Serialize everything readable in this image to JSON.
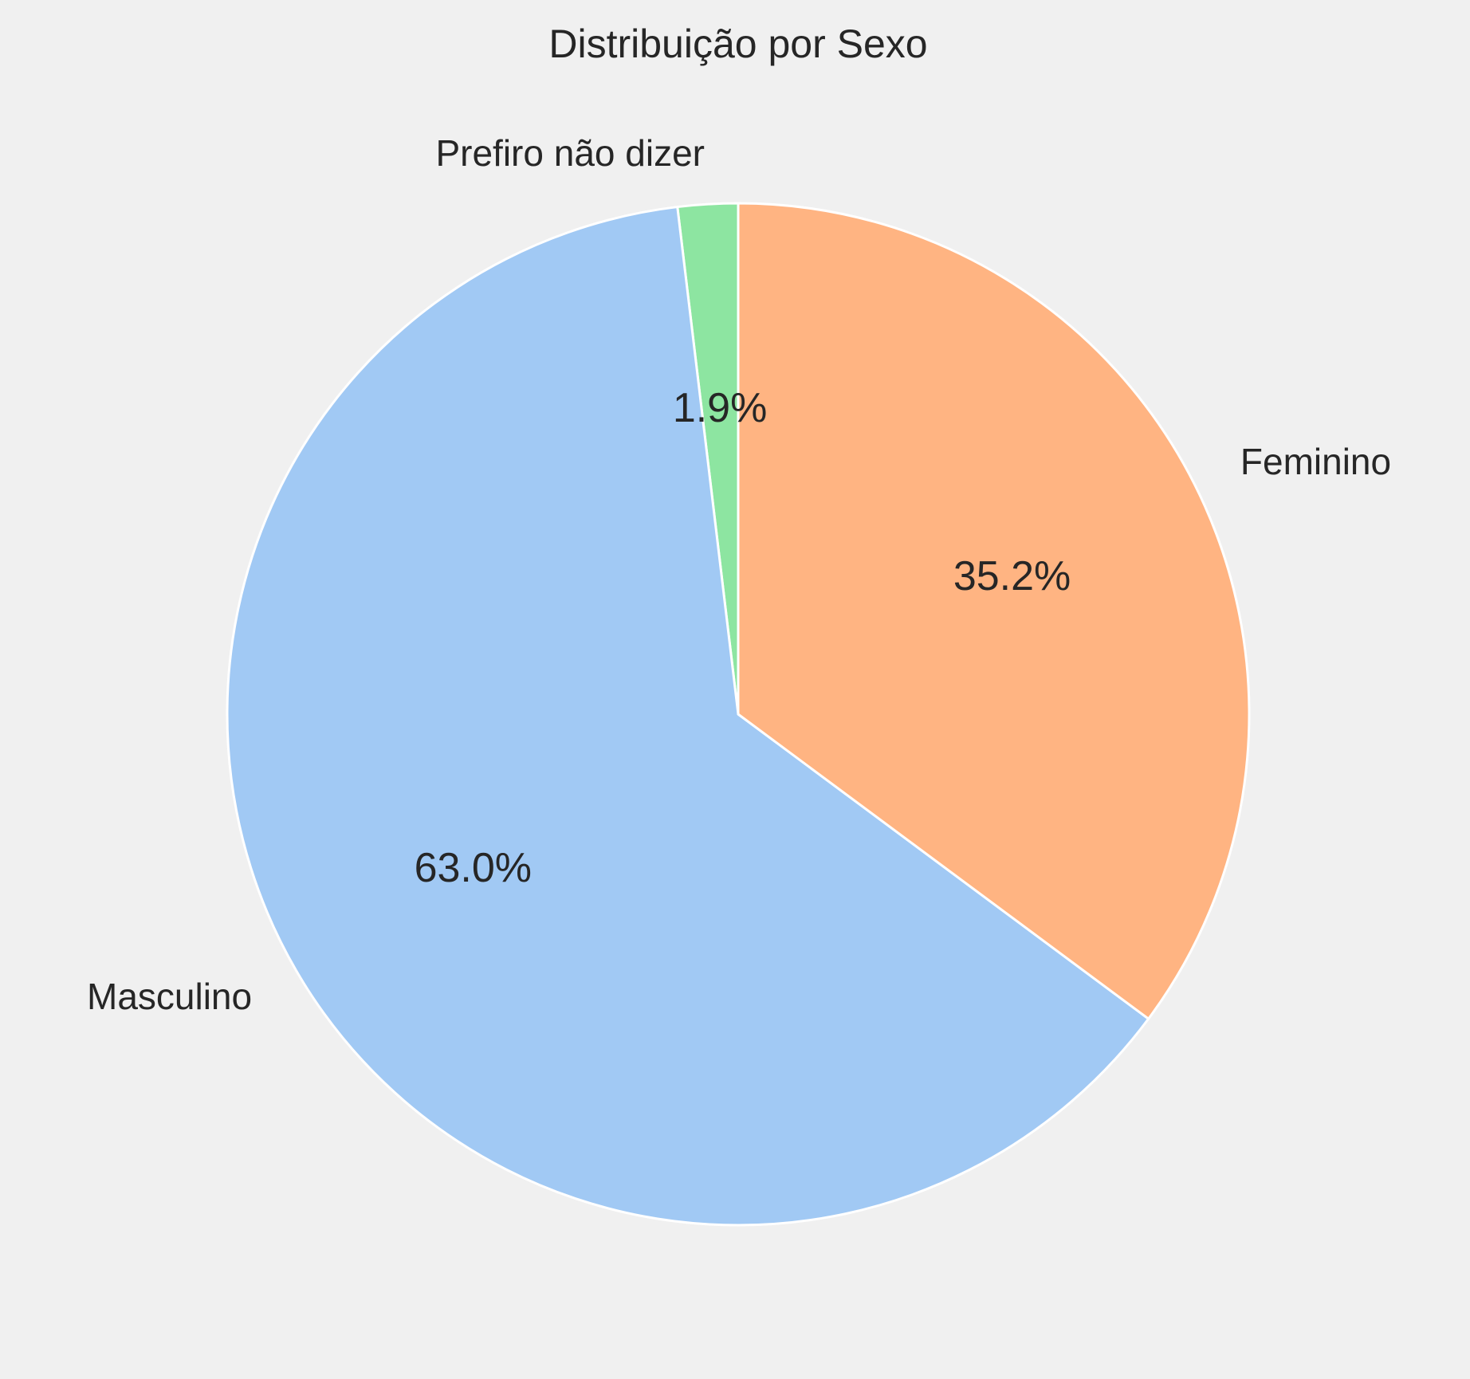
{
  "chart_data": {
    "type": "pie",
    "title": "Distribuição por Sexo",
    "direction": "counterclockwise",
    "start": "top",
    "slices": [
      {
        "label": "Prefiro não dizer",
        "value": 1.9,
        "pct_label": "1.9%",
        "color": "#8de5a1"
      },
      {
        "label": "Masculino",
        "value": 63.0,
        "pct_label": "63.0%",
        "color": "#a1c9f4"
      },
      {
        "label": "Feminino",
        "value": 35.2,
        "pct_label": "35.2%",
        "color": "#ffb482"
      }
    ]
  },
  "colors": {
    "background": "#f0f0f0",
    "text": "#262626",
    "slice_edge": "#ffffff"
  }
}
